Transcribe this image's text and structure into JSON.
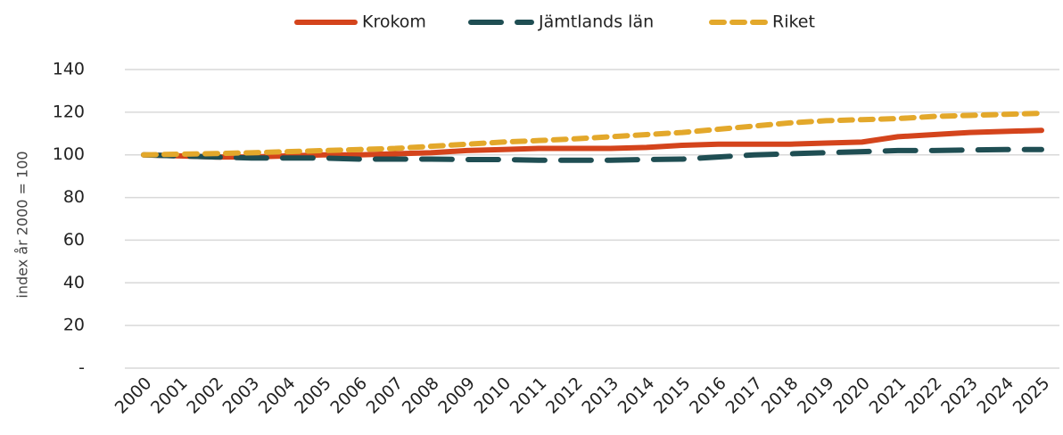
{
  "chart_data": {
    "type": "line",
    "y_label": "index år 2000 = 100",
    "x": [
      "2000",
      "2001",
      "2002",
      "2003",
      "2004",
      "2005",
      "2006",
      "2007",
      "2008",
      "2009",
      "2010",
      "2011",
      "2012",
      "2013",
      "2014",
      "2015",
      "2016",
      "2017",
      "2018",
      "2019",
      "2020",
      "2021",
      "2022",
      "2023",
      "2024",
      "2025"
    ],
    "series": [
      {
        "name": "Krokom",
        "color": "#d4441c",
        "dash": "solid",
        "values": [
          100,
          99.5,
          99,
          99,
          99.5,
          100,
          100,
          100.5,
          101,
          102,
          102.5,
          103,
          103,
          103,
          103.5,
          104.5,
          105,
          105,
          105,
          105.5,
          106,
          108.5,
          109.5,
          110.5,
          111,
          111.5
        ]
      },
      {
        "name": "Jämtlands län",
        "color": "#1f4e53",
        "dash": "long",
        "values": [
          100,
          99.5,
          99,
          98.5,
          98.5,
          98.5,
          98,
          98,
          98,
          97.8,
          97.8,
          97.5,
          97.5,
          97.5,
          97.8,
          98,
          99,
          100,
          100.5,
          101,
          101.5,
          102,
          102,
          102.3,
          102.5,
          102.5
        ]
      },
      {
        "name": "Riket",
        "color": "#e3a82b",
        "dash": "short",
        "values": [
          100,
          100.3,
          100.6,
          101,
          101.5,
          102,
          102.5,
          103,
          104,
          105,
          106,
          106.7,
          107.5,
          108.5,
          109.5,
          110.5,
          112,
          113.5,
          115,
          116,
          116.5,
          117,
          118,
          118.5,
          119,
          119.5
        ]
      }
    ],
    "ylim": [
      0,
      140
    ],
    "yticks": [
      {
        "value": 0,
        "label": "-"
      },
      20,
      40,
      60,
      80,
      100,
      120,
      140
    ],
    "grid": true,
    "legend": "top"
  }
}
